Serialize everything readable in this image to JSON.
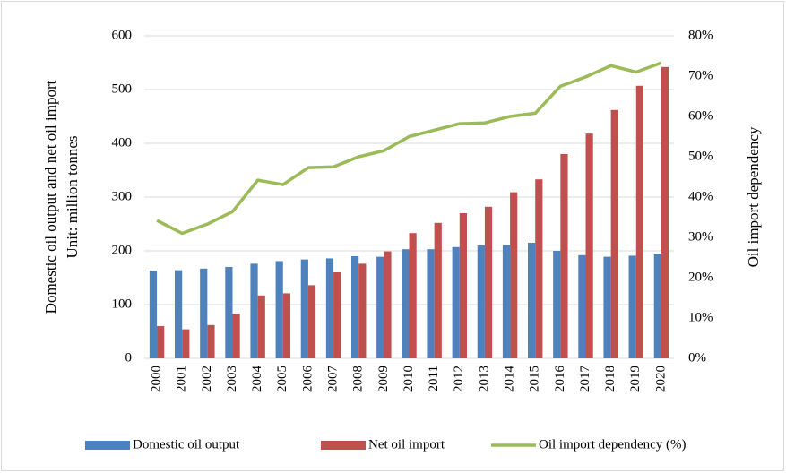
{
  "chart_data": {
    "type": "bar",
    "y_label": "Domestic oil output and net oil import",
    "y_label_unit": "Unit: million tonnes",
    "y2_label": "Oil import dependency",
    "categories": [
      "2000",
      "2001",
      "2002",
      "2003",
      "2004",
      "2005",
      "2006",
      "2007",
      "2008",
      "2009",
      "2010",
      "2011",
      "2012",
      "2013",
      "2014",
      "2015",
      "2016",
      "2017",
      "2018",
      "2019",
      "2020"
    ],
    "series": [
      {
        "name": "Domestic oil output",
        "color": "#4f81bd",
        "type": "bar",
        "values": [
          163,
          164,
          167,
          170,
          176,
          181,
          184,
          186,
          190,
          189,
          203,
          203,
          207,
          210,
          211,
          215,
          200,
          192,
          189,
          191,
          195
        ]
      },
      {
        "name": "Net oil import",
        "color": "#c0504d",
        "type": "bar",
        "values": [
          60,
          54,
          62,
          83,
          117,
          121,
          136,
          160,
          176,
          199,
          233,
          252,
          270,
          282,
          309,
          333,
          380,
          418,
          462,
          507,
          542
        ]
      },
      {
        "name": "Oil import dependency (%)",
        "color": "#9bbb59",
        "type": "line",
        "axis": "y2",
        "values": [
          34.2,
          31,
          33.3,
          36.4,
          44.2,
          43.1,
          47.3,
          47.5,
          50,
          51.5,
          55,
          56.6,
          58.2,
          58.4,
          60,
          60.8,
          67.5,
          69.8,
          72.6,
          71,
          73.3
        ]
      }
    ],
    "ylim": [
      0,
      600
    ],
    "yticks": [
      0,
      100,
      200,
      300,
      400,
      500,
      600
    ],
    "y2lim": [
      0,
      80
    ],
    "y2ticks": [
      {
        "value": 0,
        "label": "0%"
      },
      {
        "value": 10,
        "label": "10%"
      },
      {
        "value": 20,
        "label": "20%"
      },
      {
        "value": 30,
        "label": "30%"
      },
      {
        "value": 40,
        "label": "40%"
      },
      {
        "value": 50,
        "label": "50%"
      },
      {
        "value": 60,
        "label": "60%"
      },
      {
        "value": 70,
        "label": "70%"
      },
      {
        "value": 80,
        "label": "80%"
      }
    ],
    "grid": true,
    "legend": "bottom"
  }
}
